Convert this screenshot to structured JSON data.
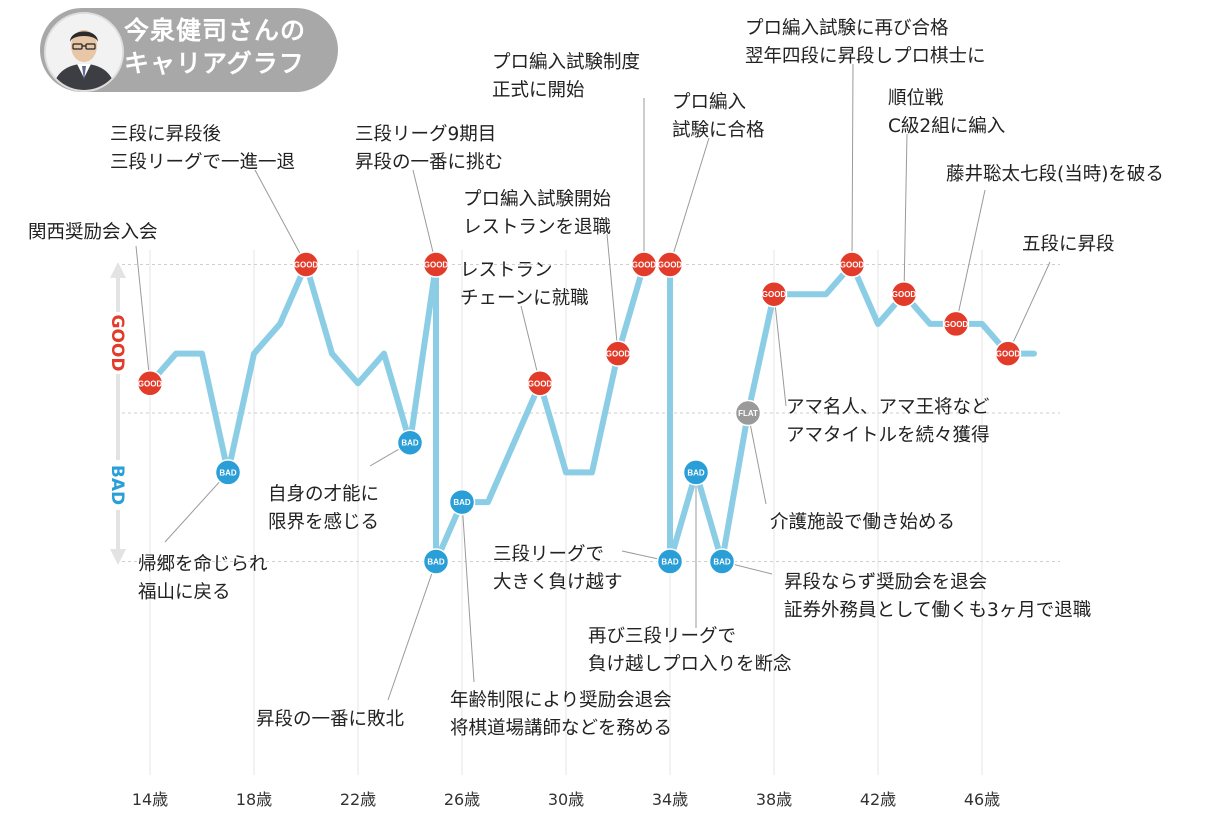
{
  "header": {
    "title_line1": "今泉健司さんの",
    "title_line2": "キャリアグラフ"
  },
  "colors": {
    "line": "#8ccde6",
    "good": "#e23b2a",
    "bad": "#2a9ed6",
    "flat": "#9a9a9a",
    "axis_good": "#e23b2a",
    "axis_bad": "#2a9ed6",
    "title_bg": "#a8a8a8"
  },
  "chart_data": {
    "type": "line",
    "title": "今泉健司さんのキャリアグラフ",
    "xlabel": "",
    "ylabel": "",
    "y_axis_labels": {
      "top": "GOOD",
      "bottom": "BAD"
    },
    "x_ticks": [
      "14歳",
      "18歳",
      "22歳",
      "26歳",
      "30歳",
      "34歳",
      "38歳",
      "42歳",
      "46歳"
    ],
    "x_tick_values": [
      14,
      18,
      22,
      26,
      30,
      34,
      38,
      42,
      46
    ],
    "xlim": [
      13,
      48
    ],
    "ylim": [
      -5.5,
      6
    ],
    "grid": {
      "vertical": true,
      "horizontal_reference": [
        5,
        0,
        -5
      ]
    },
    "series": [
      {
        "points": [
          [
            14,
            1
          ],
          [
            15,
            2
          ],
          [
            16,
            2
          ],
          [
            17,
            -2
          ],
          [
            18,
            2
          ],
          [
            19,
            3
          ],
          [
            20,
            5
          ],
          [
            21,
            2
          ],
          [
            22,
            1
          ],
          [
            23,
            2
          ],
          [
            24,
            -1
          ],
          [
            25,
            5
          ],
          [
            25,
            -5
          ],
          [
            26,
            -3
          ],
          [
            27,
            -3
          ],
          [
            28,
            -1
          ],
          [
            29,
            1
          ],
          [
            30,
            -2
          ],
          [
            31,
            -2
          ],
          [
            32,
            2
          ],
          [
            33,
            5
          ],
          [
            34,
            5
          ],
          [
            34,
            -5
          ],
          [
            35,
            -2
          ],
          [
            36,
            -5
          ],
          [
            37,
            0
          ],
          [
            38,
            4
          ],
          [
            39,
            4
          ],
          [
            40,
            4
          ],
          [
            41,
            5
          ],
          [
            42,
            3
          ],
          [
            43,
            4
          ],
          [
            44,
            3
          ],
          [
            45,
            3
          ],
          [
            46,
            3
          ],
          [
            47,
            2
          ],
          [
            48,
            2
          ]
        ]
      }
    ],
    "markers": [
      {
        "x": 14,
        "y": 1,
        "label": "GOOD"
      },
      {
        "x": 20,
        "y": 5,
        "label": "GOOD"
      },
      {
        "x": 25,
        "y": 5,
        "label": "GOOD"
      },
      {
        "x": 29,
        "y": 1,
        "label": "GOOD"
      },
      {
        "x": 32,
        "y": 2,
        "label": "GOOD"
      },
      {
        "x": 33,
        "y": 5,
        "label": "GOOD"
      },
      {
        "x": 34,
        "y": 5,
        "label": "GOOD"
      },
      {
        "x": 38,
        "y": 4,
        "label": "GOOD"
      },
      {
        "x": 41,
        "y": 5,
        "label": "GOOD"
      },
      {
        "x": 43,
        "y": 4,
        "label": "GOOD"
      },
      {
        "x": 45,
        "y": 3,
        "label": "GOOD"
      },
      {
        "x": 47,
        "y": 2,
        "label": "GOOD"
      },
      {
        "x": 17,
        "y": -2,
        "label": "BAD"
      },
      {
        "x": 24,
        "y": -1,
        "label": "BAD"
      },
      {
        "x": 25,
        "y": -5,
        "label": "BAD"
      },
      {
        "x": 26,
        "y": -3,
        "label": "BAD"
      },
      {
        "x": 34,
        "y": -5,
        "label": "BAD"
      },
      {
        "x": 35,
        "y": -2,
        "label": "BAD"
      },
      {
        "x": 36,
        "y": -5,
        "label": "BAD"
      },
      {
        "x": 37,
        "y": 0,
        "label": "FLAT"
      }
    ],
    "annotations": [
      {
        "lines": [
          "関西奨励会入会"
        ],
        "target": [
          14,
          1
        ]
      },
      {
        "lines": [
          "三段に昇段後",
          "三段リーグで一進一退"
        ],
        "target": [
          20,
          5
        ]
      },
      {
        "lines": [
          "三段リーグ9期目",
          "昇段の一番に挑む"
        ],
        "target": [
          25,
          5
        ]
      },
      {
        "lines": [
          "プロ編入試験制度",
          "正式に開始"
        ],
        "target": [
          33,
          5
        ]
      },
      {
        "lines": [
          "プロ編入",
          "試験に合格"
        ],
        "target": [
          34,
          5
        ]
      },
      {
        "lines": [
          "プロ編入試験開始",
          "レストランを退職"
        ],
        "target": [
          32,
          2
        ]
      },
      {
        "lines": [
          "レストラン",
          "チェーンに就職"
        ],
        "target": [
          29,
          1
        ]
      },
      {
        "lines": [
          "プロ編入試験に再び合格",
          "翌年四段に昇段しプロ棋士に"
        ],
        "target": [
          41,
          5
        ]
      },
      {
        "lines": [
          "順位戦",
          "C級2組に編入"
        ],
        "target": [
          43,
          4
        ]
      },
      {
        "lines": [
          "藤井聡太七段(当時)を破る"
        ],
        "target": [
          45,
          3
        ]
      },
      {
        "lines": [
          "五段に昇段"
        ],
        "target": [
          47,
          2
        ]
      },
      {
        "lines": [
          "アマ名人、アマ王将など",
          "アマタイトルを続々獲得"
        ],
        "target": [
          38,
          4
        ]
      },
      {
        "lines": [
          "介護施設で働き始める"
        ],
        "target": [
          37,
          0
        ]
      },
      {
        "lines": [
          "自身の才能に",
          "限界を感じる"
        ],
        "target": [
          24,
          -1
        ]
      },
      {
        "lines": [
          "帰郷を命じられ",
          "福山に戻る"
        ],
        "target": [
          17,
          -2
        ]
      },
      {
        "lines": [
          "三段リーグで",
          "大きく負け越す"
        ],
        "target": [
          34,
          -5
        ]
      },
      {
        "lines": [
          "昇段ならず奨励会を退会",
          "証券外務員として働くも3ヶ月で退職"
        ],
        "target": [
          36,
          -5
        ]
      },
      {
        "lines": [
          "再び三段リーグで",
          "負け越しプロ入りを断念"
        ],
        "target": [
          35,
          -2
        ]
      },
      {
        "lines": [
          "年齢制限により奨励会退会",
          "将棋道場講師などを務める"
        ],
        "target": [
          26,
          -3
        ]
      },
      {
        "lines": [
          "昇段の一番に敗北"
        ],
        "target": [
          25,
          -5
        ]
      }
    ]
  }
}
